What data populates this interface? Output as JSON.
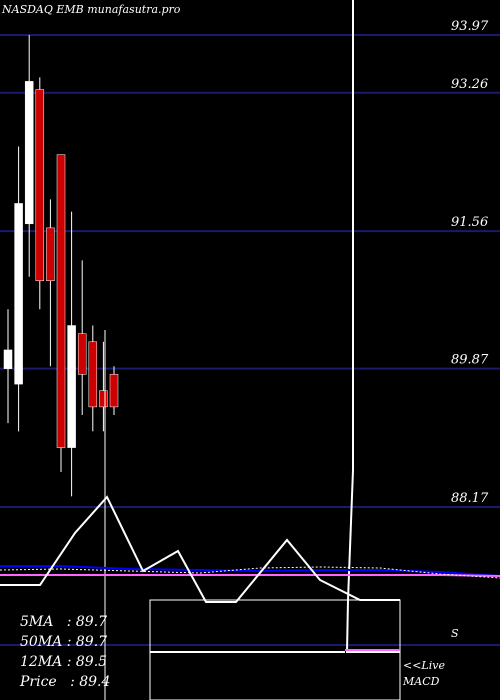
{
  "header": {
    "title": "NASDAQ EMB munafasutra.pro"
  },
  "colors": {
    "background": "#000000",
    "grid": "#1a1a6e",
    "bull": "#ffffff",
    "bear": "#cc0000",
    "ma_fast": "#0000ff",
    "ma_slow": "#ff66ff",
    "macd": "#ffffff"
  },
  "chart_data": {
    "type": "candlestick",
    "title": "NASDAQ EMB munafasutra.pro",
    "y_ticks": [
      93.97,
      93.26,
      91.56,
      89.87,
      88.17
    ],
    "y_tick_labels": [
      "93.97",
      "93.26",
      "91.56",
      "89.87",
      "88.17"
    ],
    "grid": true,
    "candles": [
      {
        "open": 89.87,
        "close": 90.1,
        "high": 90.6,
        "low": 89.2
      },
      {
        "open": 89.68,
        "close": 91.9,
        "high": 92.6,
        "low": 89.1
      },
      {
        "open": 91.65,
        "close": 93.4,
        "high": 93.97,
        "low": 91.0
      },
      {
        "open": 93.3,
        "close": 90.95,
        "high": 93.45,
        "low": 90.6
      },
      {
        "open": 91.6,
        "close": 90.95,
        "high": 91.95,
        "low": 89.9
      },
      {
        "open": 92.5,
        "close": 88.9,
        "high": 92.5,
        "low": 88.6
      },
      {
        "open": 88.9,
        "close": 90.4,
        "high": 91.8,
        "low": 88.3
      },
      {
        "open": 90.3,
        "close": 89.8,
        "high": 91.2,
        "low": 89.3
      },
      {
        "open": 90.2,
        "close": 89.4,
        "high": 90.4,
        "low": 89.1
      },
      {
        "open": 89.6,
        "close": 89.4,
        "high": 90.2,
        "low": 89.1
      },
      {
        "open": 89.8,
        "close": 89.4,
        "high": 89.9,
        "low": 89.3
      }
    ],
    "ma_levels": [
      {
        "label": "5MA",
        "value": "89.7"
      },
      {
        "label": "50MA",
        "value": "89.7"
      },
      {
        "label": "12MA",
        "value": "89.5"
      },
      {
        "label": "Price",
        "value": "89.4"
      }
    ],
    "macd": {
      "label": "MACD",
      "series": [
        0.3,
        0.5,
        0.9,
        0.3,
        0.0,
        0.0,
        0.6,
        0.2,
        0.0,
        0.0
      ]
    }
  },
  "labels": {
    "ma5": "5MA   : 89.7",
    "ma50": "50MA : 89.7",
    "ma12": "12MA : 89.5",
    "price": "Price   : 89.4",
    "small_s": "S",
    "live": "<<Live",
    "macd": "MACD"
  }
}
